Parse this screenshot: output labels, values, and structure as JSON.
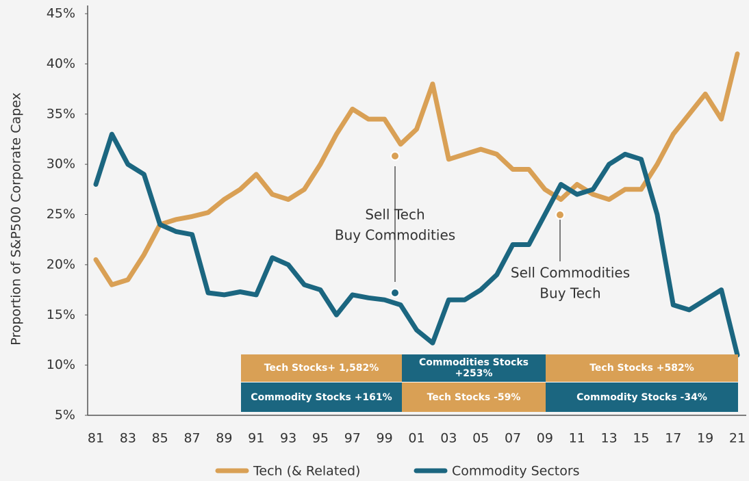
{
  "chart_data": {
    "type": "line",
    "ylabel": "Proportion of S&P500 Corporate Capex",
    "categories": [
      "81",
      null,
      "83",
      null,
      "85",
      null,
      "87",
      null,
      "89",
      null,
      "91",
      null,
      "93",
      null,
      "95",
      null,
      "97",
      null,
      "99",
      null,
      "01",
      null,
      "03",
      null,
      "05",
      null,
      "07",
      null,
      "09",
      null,
      "11",
      null,
      "13",
      null,
      "15",
      null,
      "17",
      null,
      "19",
      null,
      "21"
    ],
    "series": [
      {
        "name": "Tech (& Related)",
        "color": "#d9a055",
        "values": [
          20.5,
          18,
          18.5,
          21,
          24,
          24.5,
          24.8,
          25.2,
          26.5,
          27.5,
          29,
          27,
          26.5,
          27.5,
          30,
          33,
          35.5,
          34.5,
          34.5,
          32,
          33.5,
          38,
          30.5,
          31,
          31.5,
          31,
          29.5,
          29.5,
          27.5,
          26.5,
          28,
          27,
          26.5,
          27.5,
          27.5,
          30,
          33,
          35,
          37,
          34.5,
          41
        ]
      },
      {
        "name": "Commodity Sectors",
        "color": "#1b6680",
        "values": [
          28,
          33,
          30,
          29,
          24,
          23.3,
          23,
          17.2,
          17,
          17.3,
          17,
          20.7,
          20,
          18,
          17.5,
          15,
          17,
          16.7,
          16.5,
          16,
          13.5,
          12.2,
          16.5,
          16.5,
          17.5,
          19,
          22,
          22,
          25,
          28,
          27,
          27.5,
          30,
          31,
          30.5,
          25,
          16,
          15.5,
          16.5,
          17.5,
          11
        ]
      }
    ],
    "ylim": [
      5,
      45
    ],
    "yticks": [
      {
        "value": 5,
        "label": "5%"
      },
      {
        "value": 10,
        "label": "10%"
      },
      {
        "value": 15,
        "label": "15%"
      },
      {
        "value": 20,
        "label": "20%"
      },
      {
        "value": 25,
        "label": "25%"
      },
      {
        "value": 30,
        "label": "30%"
      },
      {
        "value": 35,
        "label": "35%"
      },
      {
        "value": 40,
        "label": "40%"
      },
      {
        "value": 45,
        "label": "45%"
      }
    ],
    "annotations": [
      {
        "lines": [
          "Sell Tech",
          "Buy Commodities"
        ]
      },
      {
        "lines": [
          "Sell Commodities",
          "Buy Tech"
        ]
      }
    ],
    "table": {
      "rows": [
        [
          "Tech Stocks+ 1,582%",
          "Commodities Stocks +253%",
          "Tech Stocks +582%"
        ],
        [
          "Commodity Stocks +161%",
          "Tech Stocks -59%",
          "Commodity Stocks -34%"
        ]
      ]
    },
    "legend": "bottom"
  }
}
